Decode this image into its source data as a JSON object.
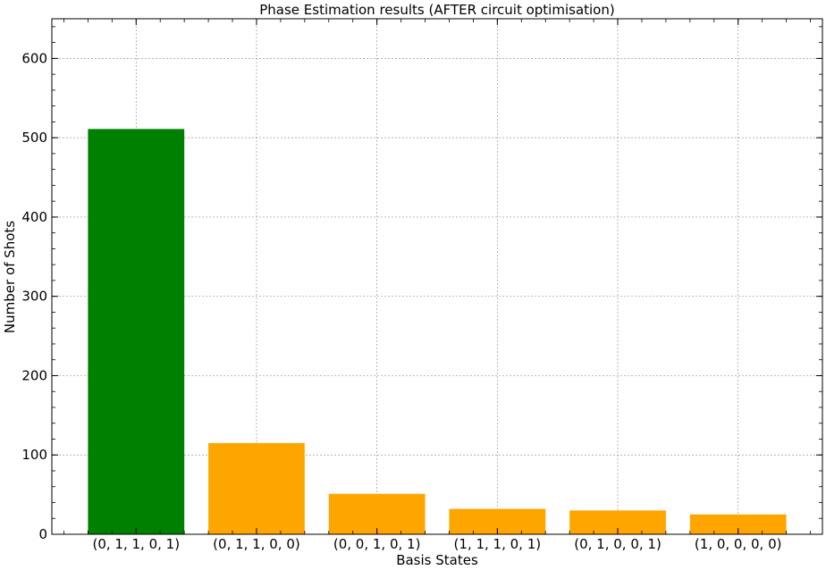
{
  "chart_data": {
    "type": "bar",
    "title": "Phase Estimation results (AFTER circuit optimisation)",
    "xlabel": "Basis States",
    "ylabel": "Number of Shots",
    "categories": [
      "(0, 1, 1, 0, 1)",
      "(0, 1, 1, 0, 0)",
      "(0, 0, 1, 0, 1)",
      "(1, 1, 1, 0, 1)",
      "(0, 1, 0, 0, 1)",
      "(1, 0, 0, 0, 0)"
    ],
    "values": [
      511,
      115,
      51,
      32,
      30,
      25
    ],
    "bar_colors": [
      "#008000",
      "#ffa500",
      "#ffa500",
      "#ffa500",
      "#ffa500",
      "#ffa500"
    ],
    "ylim": [
      0,
      650
    ],
    "yticks": [
      0,
      100,
      200,
      300,
      400,
      500,
      600
    ],
    "ytick_labels": [
      "0",
      "100",
      "200",
      "300",
      "400",
      "500",
      "600"
    ],
    "grid": true,
    "grid_color": "#999999",
    "legend": "none"
  }
}
